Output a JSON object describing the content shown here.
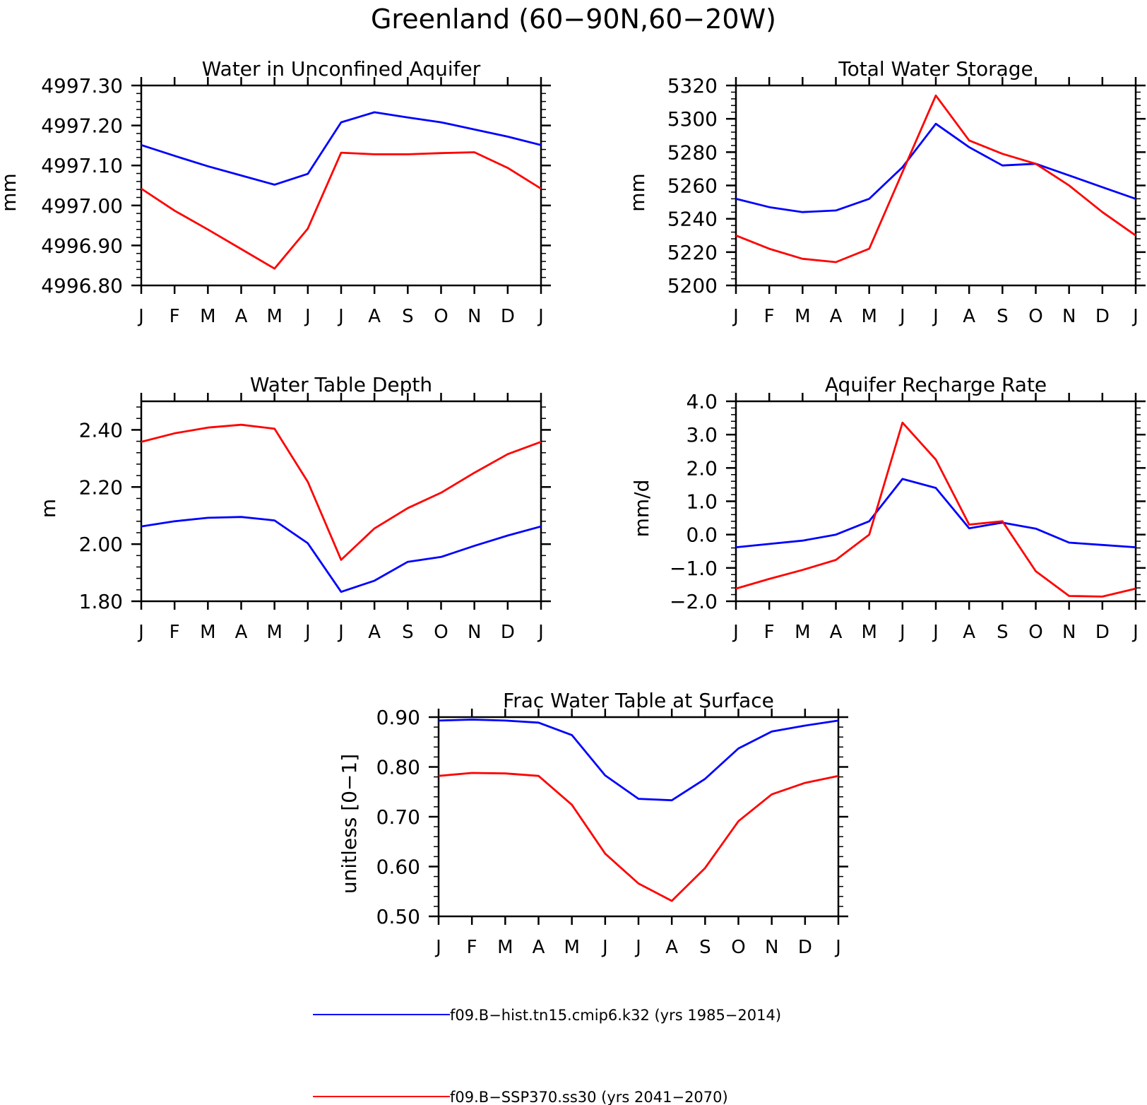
{
  "figure": {
    "title": "Greenland (60−90N,60−20W)"
  },
  "colors": {
    "hist": "#0000ff",
    "ssp": "#ff0000",
    "axis": "#000000"
  },
  "legend": [
    {
      "label": "f09.B−hist.tn15.cmip6.k32 (yrs 1985−2014)",
      "color": "#0000ff"
    },
    {
      "label": "f09.B−SSP370.ss30 (yrs 2041−2070)",
      "color": "#ff0000"
    }
  ],
  "chart_data": [
    {
      "type": "line",
      "title": "Water in Unconfined Aquifer",
      "ylabel": "mm",
      "categories": [
        "J",
        "F",
        "M",
        "A",
        "M",
        "J",
        "J",
        "A",
        "S",
        "O",
        "N",
        "D",
        "J"
      ],
      "ylim": [
        4996.8,
        4997.3
      ],
      "yticks": [
        "4996.80",
        "4996.90",
        "4997.00",
        "4997.10",
        "4997.20",
        "4997.30"
      ],
      "series": [
        {
          "name": "f09.B−hist.tn15.cmip6.k32 (yrs 1985−2014)",
          "color": "#0000ff",
          "values": [
            4997.151,
            4997.124,
            4997.098,
            4997.075,
            4997.052,
            4997.079,
            4997.208,
            4997.233,
            4997.22,
            4997.208,
            4997.19,
            4997.172,
            4997.151
          ]
        },
        {
          "name": "f09.B−SSP370.ss30 (yrs 2041−2070)",
          "color": "#ff0000",
          "values": [
            4997.042,
            4996.987,
            4996.94,
            4996.891,
            4996.842,
            4996.942,
            4997.132,
            4997.128,
            4997.128,
            4997.131,
            4997.133,
            4997.094,
            4997.042
          ]
        }
      ]
    },
    {
      "type": "line",
      "title": "Total Water Storage",
      "ylabel": "mm",
      "categories": [
        "J",
        "F",
        "M",
        "A",
        "M",
        "J",
        "J",
        "A",
        "S",
        "O",
        "N",
        "D",
        "J"
      ],
      "ylim": [
        5200,
        5320
      ],
      "yticks": [
        "5200",
        "5220",
        "5240",
        "5260",
        "5280",
        "5300",
        "5320"
      ],
      "series": [
        {
          "name": "f09.B−hist.tn15.cmip6.k32 (yrs 1985−2014)",
          "color": "#0000ff",
          "values": [
            5252,
            5247,
            5244,
            5245,
            5252,
            5271,
            5297,
            5283,
            5272,
            5273,
            5266,
            5259,
            5252
          ]
        },
        {
          "name": "f09.B−SSP370.ss30 (yrs 2041−2070)",
          "color": "#ff0000",
          "values": [
            5230,
            5222,
            5216,
            5214,
            5222,
            5268,
            5314,
            5287,
            5279,
            5273,
            5260,
            5244,
            5230
          ]
        }
      ]
    },
    {
      "type": "line",
      "title": "Water Table Depth",
      "ylabel": "m",
      "categories": [
        "J",
        "F",
        "M",
        "A",
        "M",
        "J",
        "J",
        "A",
        "S",
        "O",
        "N",
        "D",
        "J"
      ],
      "ylim": [
        1.8,
        2.5
      ],
      "yticks": [
        "1.80",
        "2.00",
        "2.20",
        "2.40"
      ],
      "series": [
        {
          "name": "f09.B−hist.tn15.cmip6.k32 (yrs 1985−2014)",
          "color": "#0000ff",
          "values": [
            2.062,
            2.08,
            2.092,
            2.095,
            2.083,
            2.003,
            1.833,
            1.872,
            1.938,
            1.955,
            1.994,
            2.03,
            2.062
          ]
        },
        {
          "name": "f09.B−SSP370.ss30 (yrs 2041−2070)",
          "color": "#ff0000",
          "values": [
            2.358,
            2.388,
            2.408,
            2.418,
            2.404,
            2.218,
            1.945,
            2.055,
            2.126,
            2.18,
            2.25,
            2.315,
            2.358
          ]
        }
      ]
    },
    {
      "type": "line",
      "title": "Aquifer Recharge Rate",
      "ylabel": "mm/d",
      "categories": [
        "J",
        "F",
        "M",
        "A",
        "M",
        "J",
        "J",
        "A",
        "S",
        "O",
        "N",
        "D",
        "J"
      ],
      "ylim": [
        -2.0,
        4.0
      ],
      "yticks": [
        "−2.0",
        "−1.0",
        "0.0",
        "1.0",
        "2.0",
        "3.0",
        "4.0"
      ],
      "series": [
        {
          "name": "f09.B−hist.tn15.cmip6.k32 (yrs 1985−2014)",
          "color": "#0000ff",
          "values": [
            -0.38,
            -0.28,
            -0.18,
            0.0,
            0.4,
            1.67,
            1.4,
            0.19,
            0.36,
            0.18,
            -0.24,
            -0.31,
            -0.38
          ]
        },
        {
          "name": "f09.B−SSP370.ss30 (yrs 2041−2070)",
          "color": "#ff0000",
          "values": [
            -1.62,
            -1.33,
            -1.06,
            -0.76,
            0.0,
            3.36,
            2.25,
            0.3,
            0.4,
            -1.1,
            -1.84,
            -1.86,
            -1.62
          ]
        }
      ]
    },
    {
      "type": "line",
      "title": "Frac Water Table at Surface",
      "ylabel": "unitless [0−1]",
      "categories": [
        "J",
        "F",
        "M",
        "A",
        "M",
        "J",
        "J",
        "A",
        "S",
        "O",
        "N",
        "D",
        "J"
      ],
      "ylim": [
        0.5,
        0.9
      ],
      "yticks": [
        "0.50",
        "0.60",
        "0.70",
        "0.80",
        "0.90"
      ],
      "series": [
        {
          "name": "f09.B−hist.tn15.cmip6.k32 (yrs 1985−2014)",
          "color": "#0000ff",
          "values": [
            0.893,
            0.895,
            0.893,
            0.889,
            0.864,
            0.783,
            0.736,
            0.733,
            0.776,
            0.837,
            0.871,
            0.883,
            0.893
          ]
        },
        {
          "name": "f09.B−SSP370.ss30 (yrs 2041−2070)",
          "color": "#ff0000",
          "values": [
            0.782,
            0.788,
            0.787,
            0.782,
            0.724,
            0.626,
            0.566,
            0.531,
            0.597,
            0.691,
            0.745,
            0.768,
            0.782
          ]
        }
      ]
    }
  ]
}
